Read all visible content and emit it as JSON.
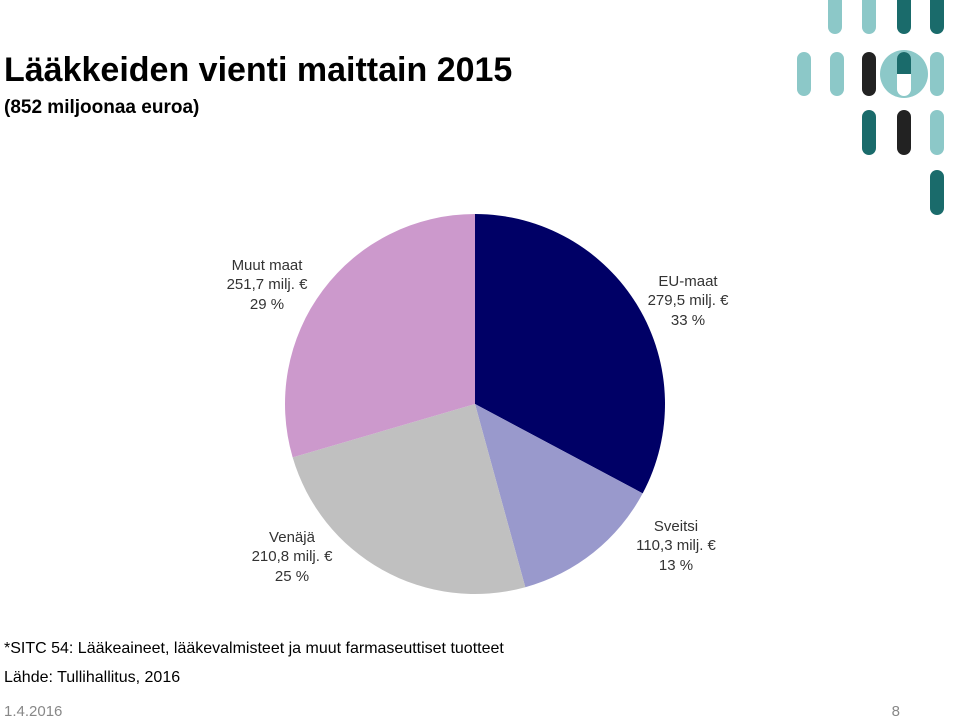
{
  "chart_data": {
    "type": "pie",
    "title": "Lääkkeiden vienti maittain 2015",
    "subtitle": "(852 miljoonaa euroa)",
    "categories": [
      "EU-maat",
      "Sveitsi",
      "Venäjä",
      "Muut maat"
    ],
    "values": [
      279.5,
      110.3,
      210.8,
      251.7
    ],
    "value_labels": [
      "279,5 milj. €",
      "110,3 milj. €",
      "210,8 milj. €",
      "251,7 milj. €"
    ],
    "percentages": [
      33,
      13,
      25,
      29
    ],
    "percentage_labels": [
      "33 %",
      "13 %",
      "25 %",
      "29 %"
    ],
    "colors": [
      "#000066",
      "#9999cc",
      "#c0c0c0",
      "#cc99cc"
    ]
  },
  "footnote": "*SITC 54: Lääkeaineet, lääkevalmisteet ja muut farmaseuttiset tuotteet",
  "source": "Lähde: Tullihallitus, 2016",
  "date": "1.4.2016",
  "page_number": "8"
}
